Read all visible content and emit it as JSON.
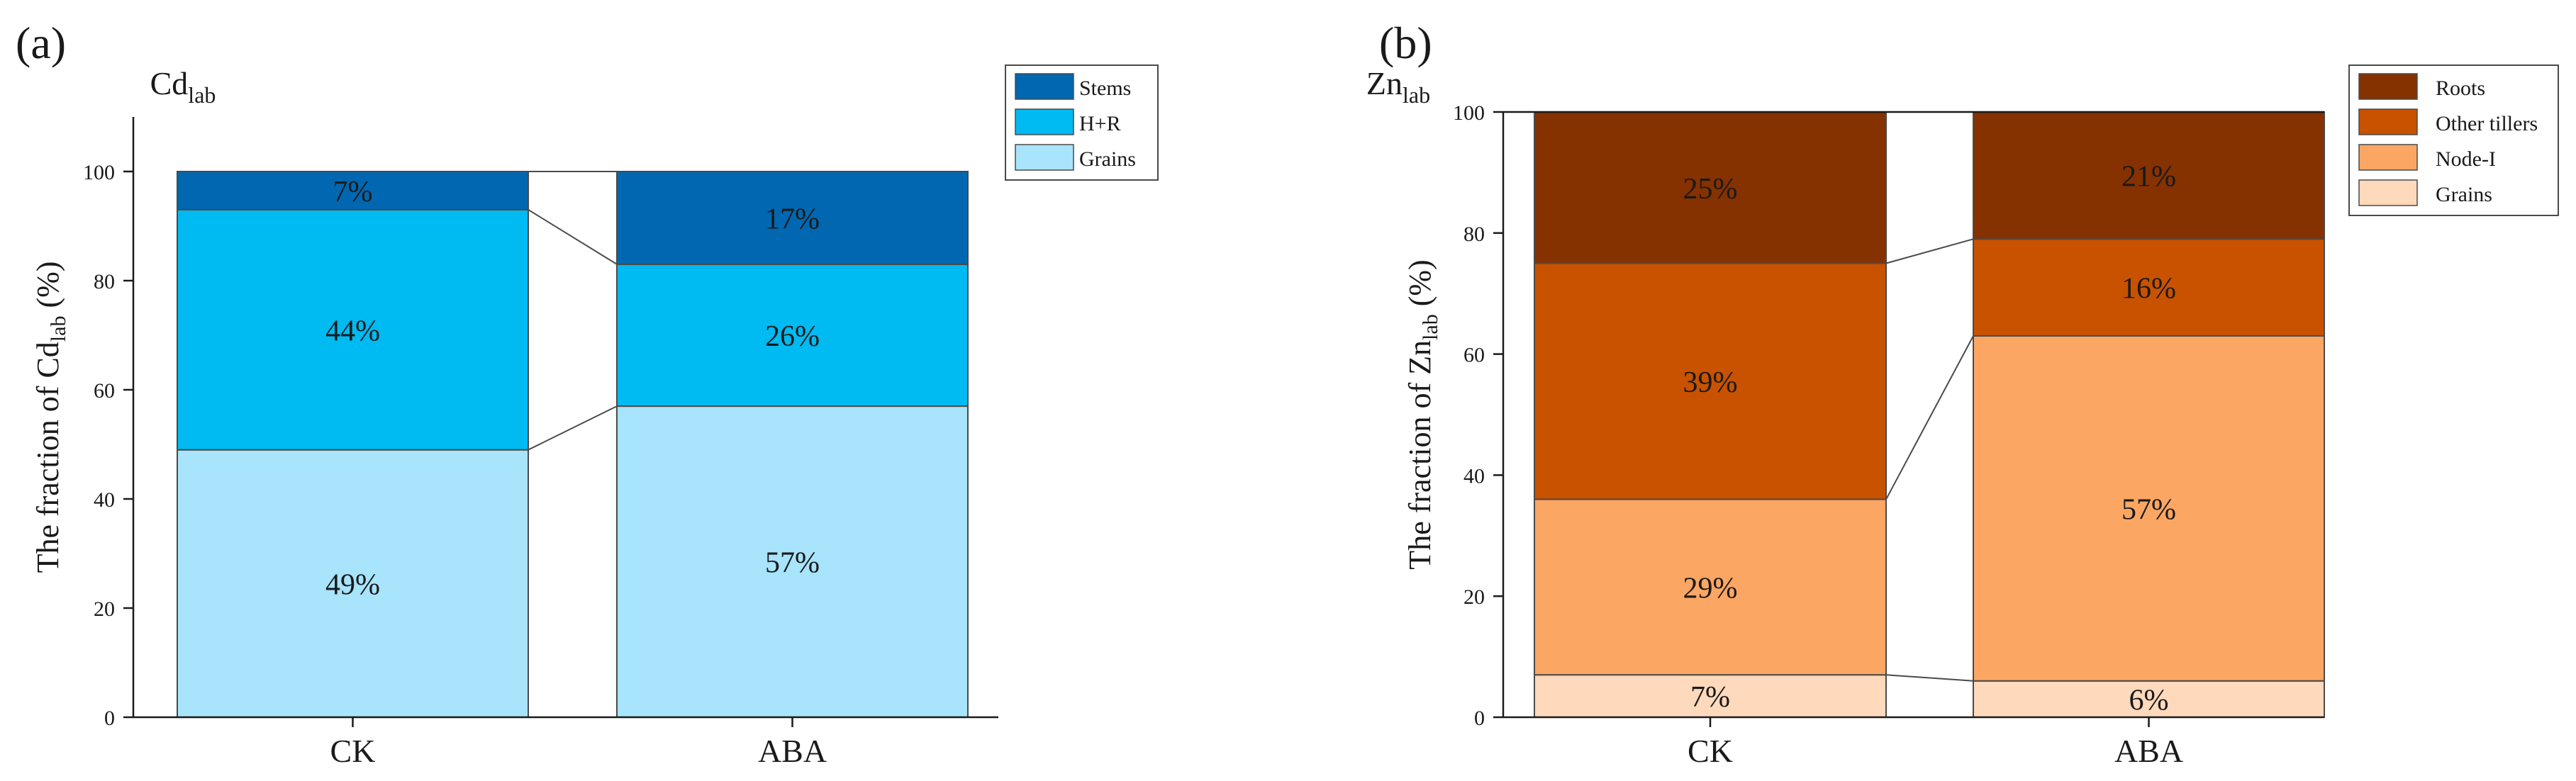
{
  "chart_data": [
    {
      "type": "stacked-bar",
      "panel_label": "(a)",
      "title_main": "Cd",
      "title_sub": "lab",
      "ylabel_pre": "The fraction of Cd",
      "ylabel_sub": "lab",
      "ylabel_post": " (%)",
      "ylim": [
        0,
        110
      ],
      "yticks": [
        0,
        20,
        40,
        60,
        80,
        100
      ],
      "categories": [
        "CK",
        "ABA"
      ],
      "series": [
        {
          "name": "Grains",
          "color": "#a8e4fb",
          "values": [
            49,
            57
          ],
          "labels": [
            "49%",
            "57%"
          ],
          "label_color": "#1a1a1a"
        },
        {
          "name": "H+R",
          "color": "#00baf2",
          "values": [
            44,
            26
          ],
          "labels": [
            "44%",
            "26%"
          ],
          "label_color": "#1a1a1a"
        },
        {
          "name": "Stems",
          "color": "#0067b0",
          "values": [
            7,
            17
          ],
          "labels": [
            "7%",
            "17%"
          ],
          "label_color": "#d6ecff"
        }
      ],
      "legend_order": [
        "Stems",
        "H+R",
        "Grains"
      ],
      "legend_position": "top-right",
      "connectors": true
    },
    {
      "type": "stacked-bar",
      "panel_label": "(b)",
      "title_main": "Zn",
      "title_sub": "lab",
      "ylabel_pre": "The fraction of Zn",
      "ylabel_sub": "lab",
      "ylabel_post": " (%)",
      "ylim": [
        0,
        100
      ],
      "yticks": [
        0,
        20,
        40,
        60,
        80,
        100
      ],
      "categories": [
        "CK",
        "ABA"
      ],
      "series": [
        {
          "name": "Grains",
          "color": "#fed9bb",
          "values": [
            7,
            6
          ],
          "labels": [
            "7%",
            "6%"
          ],
          "label_color": "#1a1a1a"
        },
        {
          "name": "Node-I",
          "color": "#fca664",
          "values": [
            29,
            57
          ],
          "labels": [
            "29%",
            "57%"
          ],
          "label_color": "#1a1a1a"
        },
        {
          "name": "Other tillers",
          "color": "#c85200",
          "values": [
            39,
            16
          ],
          "labels": [
            "39%",
            "16%"
          ],
          "label_color": "#fbe8da"
        },
        {
          "name": "Roots",
          "color": "#853100",
          "values": [
            25,
            21
          ],
          "labels": [
            "25%",
            "21%"
          ],
          "label_color": "#fbe8da"
        }
      ],
      "legend_order": [
        "Roots",
        "Other tillers",
        "Node-I",
        "Grains"
      ],
      "legend_position": "top-right",
      "connectors": true
    }
  ]
}
